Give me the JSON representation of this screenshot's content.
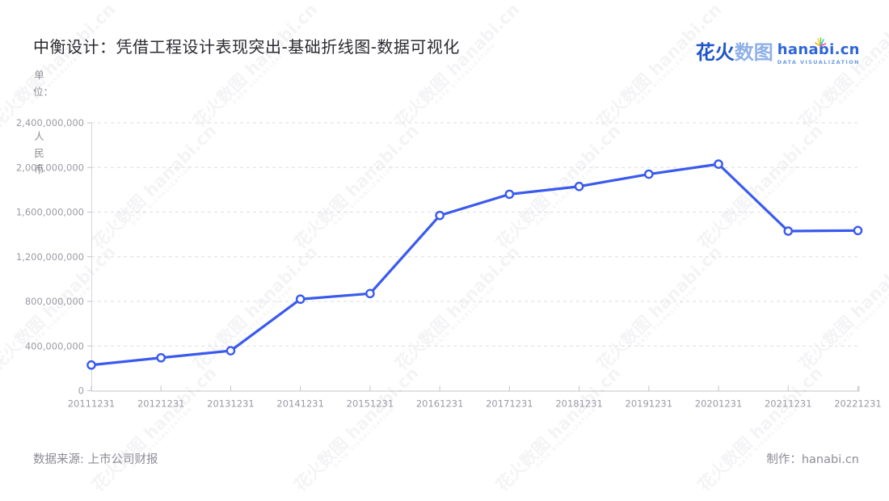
{
  "page": {
    "title": "中衡设计：凭借工程设计表现突出-基础折线图-数据可视化"
  },
  "logo": {
    "brand_cn_primary": "花火",
    "brand_cn_secondary": "数图",
    "brand_en": "hanabi.cn",
    "tagline": "DATA VISUALIZATION",
    "sparkle_icon": "firework-sparkle"
  },
  "watermark": {
    "text": "花火数图 hanabi.cn",
    "subtext": "DATA VISUALIZATION"
  },
  "footer": {
    "source_label": "数据来源: 上市公司财报",
    "credit_label": "制作：hanabi.cn"
  },
  "colors": {
    "line": "#3A5AEE",
    "marker_fill": "#ffffff",
    "brand_primary": "#2156C8",
    "brand_secondary": "#8FB0E8",
    "brand_en": "#2E66D9",
    "tagline": "#6F9BE0",
    "grid": "#dedee2",
    "axis": "#c4c4c9",
    "tick_label": "#9b9ba3"
  },
  "chart_data": {
    "type": "line",
    "title": "中衡设计：凭借工程设计表现突出-基础折线图-数据可视化",
    "unit_label": "单位：人民币",
    "unit_label_top": "单位：",
    "unit_label_bottom": "人民币",
    "categories": [
      "20111231",
      "20121231",
      "20131231",
      "20141231",
      "20151231",
      "20161231",
      "20171231",
      "20181231",
      "20191231",
      "20201231",
      "20211231",
      "20221231"
    ],
    "values": [
      230000000,
      295000000,
      358000000,
      820000000,
      870000000,
      1570000000,
      1760000000,
      1830000000,
      1940000000,
      2030000000,
      1430000000,
      1435000000
    ],
    "ylim": [
      0,
      2400000000
    ],
    "y_interval": 400000000,
    "y_tick_labels": [
      "0",
      "400,000,000",
      "800,000,000",
      "1,200,000,000",
      "1,600,000,000",
      "2,000,000,000",
      "2,400,000,000"
    ],
    "grid": "horizontal-dashed",
    "legend": "none",
    "marker": "open-circle"
  }
}
